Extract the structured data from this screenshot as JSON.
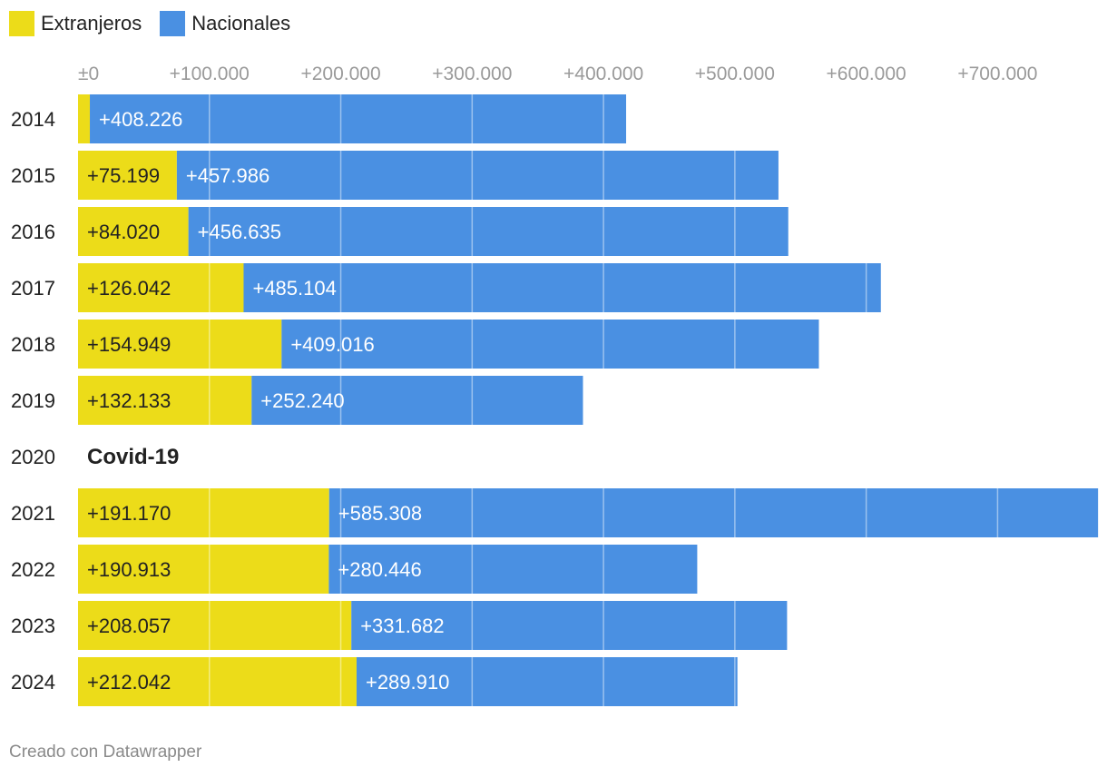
{
  "legend": {
    "series": [
      {
        "name": "Extranjeros",
        "color": "#ECDC19"
      },
      {
        "name": "Nacionales",
        "color": "#4A90E2"
      }
    ]
  },
  "footer": {
    "credit": "Creado con Datawrapper"
  },
  "chart_data": {
    "type": "bar",
    "orientation": "horizontal",
    "stacked": true,
    "title": "",
    "xlabel": "",
    "ylabel": "",
    "xlim": [
      0,
      775000
    ],
    "ticks": [
      {
        "value": 0,
        "label": "±0"
      },
      {
        "value": 100000,
        "label": "+100.000"
      },
      {
        "value": 200000,
        "label": "+200.000"
      },
      {
        "value": 300000,
        "label": "+300.000"
      },
      {
        "value": 400000,
        "label": "+400.000"
      },
      {
        "value": 500000,
        "label": "+500.000"
      },
      {
        "value": 600000,
        "label": "+600.000"
      },
      {
        "value": 700000,
        "label": "+700.000"
      }
    ],
    "categories": [
      "2014",
      "2015",
      "2016",
      "2017",
      "2018",
      "2019",
      "2020",
      "2021",
      "2022",
      "2023",
      "2024"
    ],
    "series": [
      {
        "name": "Extranjeros",
        "color": "#ECDC19",
        "values": [
          9000,
          75199,
          84020,
          126042,
          154949,
          132133,
          null,
          191170,
          190913,
          208057,
          212042
        ],
        "labels": [
          "",
          "+75.199",
          "+84.020",
          "+126.042",
          "+154.949",
          "+132.133",
          "",
          "+191.170",
          "+190.913",
          "+208.057",
          "+212.042"
        ]
      },
      {
        "name": "Nacionales",
        "color": "#4A90E2",
        "values": [
          408226,
          457986,
          456635,
          485104,
          409016,
          252240,
          null,
          585308,
          280446,
          331682,
          289910
        ],
        "labels": [
          "+408.226",
          "+457.986",
          "+456.635",
          "+485.104",
          "+409.016",
          "+252.240",
          "",
          "+585.308",
          "+280.446",
          "+331.682",
          "+289.910"
        ]
      }
    ],
    "annotations": [
      {
        "category": "2020",
        "text": "Covid-19"
      }
    ]
  }
}
